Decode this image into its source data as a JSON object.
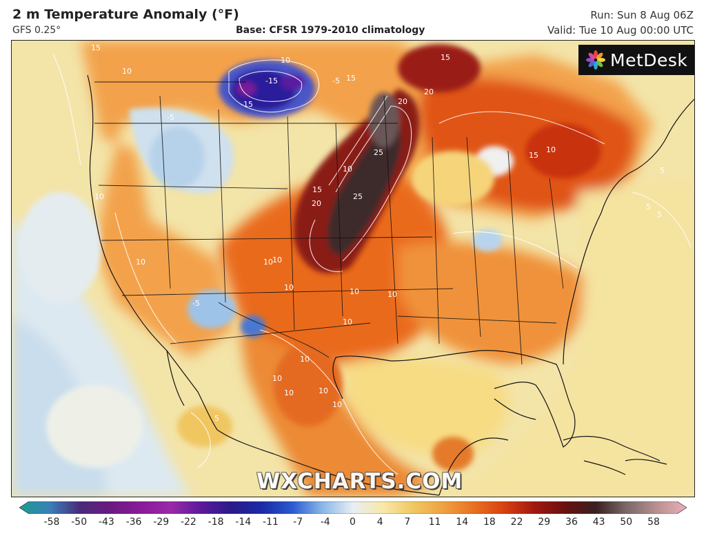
{
  "header": {
    "title": "2 m Temperature Anomaly (°F)",
    "model": "GFS 0.25°",
    "base": "Base: CFSR 1979-2010 climatology",
    "run": "Run: Sun 8 Aug 06Z",
    "valid": "Valid: Tue 10 Aug 00:00 UTC"
  },
  "logo": {
    "text": "MetDesk",
    "icon": "flower-logo-icon"
  },
  "watermark": "WXCHARTS.COM",
  "map": {
    "region": "North America",
    "contour_labels": [
      "15",
      "10",
      "-15",
      "-5",
      "-15",
      "10",
      "-5",
      "15",
      "20",
      "20",
      "25",
      "15",
      "20",
      "25",
      "10",
      "10",
      "10",
      "10",
      "10",
      "-5",
      "10",
      "10",
      "10",
      "10",
      "10",
      "10",
      "10",
      "10",
      "10",
      "5",
      "5",
      "5",
      "5",
      "15",
      "10",
      "15"
    ]
  },
  "colorbar": {
    "ticks": [
      "-58",
      "-50",
      "-43",
      "-36",
      "-29",
      "-22",
      "-18",
      "-14",
      "-11",
      "-7",
      "-4",
      "0",
      "4",
      "7",
      "11",
      "14",
      "18",
      "22",
      "29",
      "36",
      "43",
      "50",
      "58"
    ],
    "colors": [
      "#1a9e8f",
      "#3a7fb8",
      "#4a2a7a",
      "#6a1a80",
      "#8a1a9a",
      "#9a2aa8",
      "#5a1a9a",
      "#2a1a8a",
      "#1a2aa8",
      "#2a5ad0",
      "#8ab8e8",
      "#e8eef4",
      "#f8e8a8",
      "#f0c860",
      "#f0a040",
      "#e87020",
      "#d84010",
      "#a01810",
      "#6a1010",
      "#3a2020",
      "#7a6868",
      "#b89090",
      "#e8b0b8"
    ]
  }
}
